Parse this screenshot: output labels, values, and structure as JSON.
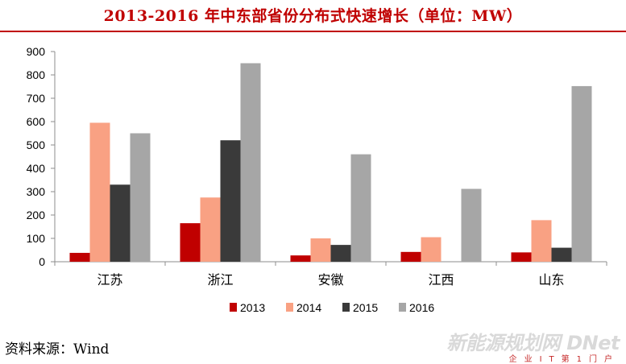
{
  "chart_data": {
    "type": "bar",
    "title": "2013-2016 年中东部省份分布式快速增长（单位：MW）",
    "categories": [
      "江苏",
      "浙江",
      "安徽",
      "江西",
      "山东"
    ],
    "series": [
      {
        "name": "2013",
        "color": "#c00000",
        "values": [
          38,
          165,
          27,
          42,
          40
        ]
      },
      {
        "name": "2014",
        "color": "#f9a183",
        "values": [
          595,
          275,
          100,
          105,
          178
        ]
      },
      {
        "name": "2015",
        "color": "#3a3a3a",
        "values": [
          330,
          520,
          72,
          0,
          60
        ]
      },
      {
        "name": "2016",
        "color": "#a6a6a6",
        "values": [
          550,
          850,
          460,
          312,
          752
        ]
      }
    ],
    "ylim": [
      0,
      900
    ],
    "yticks": [
      0,
      100,
      200,
      300,
      400,
      500,
      600,
      700,
      800,
      900
    ],
    "grid": false,
    "legend": "bottom"
  },
  "source": "资料来源：Wind",
  "watermark": {
    "text": "新能源规划网 DNet",
    "sub": "企业IT第1门户"
  }
}
